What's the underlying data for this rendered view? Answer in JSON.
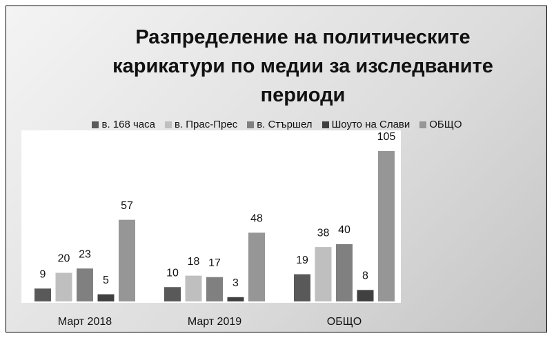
{
  "chart_data": {
    "type": "bar",
    "title": "Разпределение на политическите карикатури по медии за изследваните периоди",
    "categories": [
      "Март 2018",
      "Март 2019",
      "ОБЩО"
    ],
    "series": [
      {
        "name": "в. 168 часа",
        "color": "#595959",
        "values": [
          9,
          10,
          19
        ]
      },
      {
        "name": "в. Прас-Прес",
        "color": "#bfbfbf",
        "values": [
          20,
          18,
          38
        ]
      },
      {
        "name": "в. Стършел",
        "color": "#808080",
        "values": [
          23,
          17,
          40
        ]
      },
      {
        "name": "Шоуто на Слави",
        "color": "#404040",
        "values": [
          5,
          3,
          8
        ]
      },
      {
        "name": "ОБЩО",
        "color": "#969696",
        "values": [
          57,
          48,
          105
        ]
      }
    ],
    "legend": "top"
  }
}
